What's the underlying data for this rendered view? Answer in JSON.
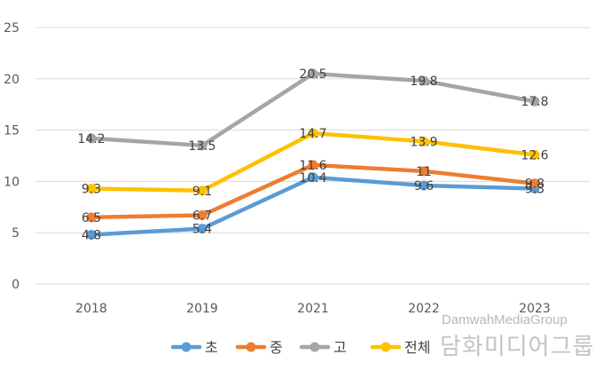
{
  "chart_data": {
    "type": "line",
    "categories": [
      "2018",
      "2019",
      "2021",
      "2022",
      "2023"
    ],
    "ylim": [
      0,
      25
    ],
    "yticks": [
      0,
      5,
      10,
      15,
      20,
      25
    ],
    "grid": true,
    "legend_position": "bottom",
    "series": [
      {
        "name": "초",
        "color": "#5B9BD5",
        "values": [
          4.8,
          5.4,
          10.4,
          9.6,
          9.3
        ],
        "labels": [
          "4.8",
          "5.4",
          "10.4",
          "9.6",
          "9.3"
        ]
      },
      {
        "name": "중",
        "color": "#ED7D31",
        "values": [
          6.5,
          6.7,
          11.6,
          11,
          9.8
        ],
        "labels": [
          "6.5",
          "6.7",
          "11.6",
          "11",
          "9.8"
        ]
      },
      {
        "name": "고",
        "color": "#A5A5A5",
        "values": [
          14.2,
          13.5,
          20.5,
          19.8,
          17.8
        ],
        "labels": [
          "14.2",
          "13.5",
          "20.5",
          "19.8",
          "17.8"
        ]
      },
      {
        "name": "전체",
        "color": "#FFC000",
        "values": [
          9.3,
          9.1,
          14.7,
          13.9,
          12.6
        ],
        "labels": [
          "9.3",
          "9.1",
          "14.7",
          "13.9",
          "12.6"
        ]
      }
    ]
  },
  "watermark": {
    "english": "DamwahMediaGroup",
    "korean": "담화미디어그룹"
  }
}
